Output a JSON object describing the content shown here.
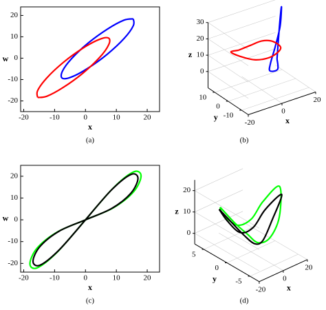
{
  "chart_data": [
    {
      "type": "line",
      "caption": "(a)",
      "x_label": "x",
      "y_label": "w",
      "xlim": [
        -21,
        24
      ],
      "ylim": [
        -25,
        24
      ],
      "xticks": [
        -20,
        -10,
        0,
        10,
        20
      ],
      "yticks": [
        -20,
        -10,
        0,
        10,
        20
      ],
      "series": [
        {
          "color": "#0000ff",
          "x": [
            15.5,
            12.5,
            7.1,
            0.9,
            -4.5,
            -7.5,
            -7.5,
            -4.5,
            0.9,
            7.1,
            12.5,
            15.5,
            15.5
          ],
          "values": [
            18.4,
            17.8,
            13.6,
            7.1,
            -0.2,
            -6.2,
            -9.4,
            -8.8,
            -4.6,
            1.9,
            9.2,
            15.2,
            18.4
          ]
        },
        {
          "color": "#ff0000",
          "x": [
            -15.5,
            -12.5,
            -7.1,
            -0.9,
            4.5,
            7.5,
            7.5,
            4.5,
            -0.9,
            -7.1,
            -12.5,
            -15.5,
            -15.5
          ],
          "values": [
            -18.4,
            -17.8,
            -13.6,
            -7.1,
            0.2,
            6.2,
            9.4,
            8.8,
            4.6,
            -1.9,
            -9.2,
            -15.2,
            -18.4
          ]
        }
      ]
    },
    {
      "type": "line3d",
      "caption": "(b)",
      "x_label": "x",
      "y_label": "y",
      "z_label": "z",
      "xlim": [
        -20,
        20
      ],
      "ylim": [
        -15,
        15
      ],
      "zlim": [
        -10,
        30
      ],
      "xticks": [
        -20,
        0,
        20
      ],
      "yticks": [
        -10,
        0,
        10
      ],
      "zticks": [
        0,
        10,
        20,
        30
      ],
      "series": [
        {
          "color": "#0000ff",
          "x": [
            5,
            10,
            15,
            18,
            14,
            8,
            2,
            0,
            3,
            5
          ],
          "y": [
            -5,
            0,
            5,
            8,
            4,
            0,
            -4,
            -6,
            -8,
            -5
          ],
          "z": [
            10,
            20,
            28,
            30,
            22,
            14,
            8,
            5,
            6,
            10
          ]
        },
        {
          "color": "#ff0000",
          "x": [
            -10,
            -5,
            0,
            5,
            8,
            4,
            -2,
            -8,
            -12,
            -10
          ],
          "y": [
            5,
            2,
            0,
            -2,
            -4,
            -2,
            2,
            6,
            8,
            5
          ],
          "z": [
            15,
            18,
            20,
            19,
            15,
            10,
            8,
            10,
            13,
            15
          ]
        }
      ]
    },
    {
      "type": "line",
      "caption": "(c)",
      "x_label": "x",
      "y_label": "w",
      "xlim": [
        -21,
        24
      ],
      "ylim": [
        -24,
        25
      ],
      "xticks": [
        -20,
        -10,
        0,
        10,
        20
      ],
      "yticks": [
        -20,
        -10,
        0,
        10,
        20
      ],
      "series": [
        {
          "color": "#00ff00",
          "x": [
            0,
            9,
            15.6,
            18,
            15.6,
            9,
            0,
            -9,
            -15.6,
            -18,
            -15.6,
            -9,
            0
          ],
          "values": [
            0,
            14.6,
            22,
            20.1,
            12.9,
            5.5,
            0,
            -5.5,
            -12.9,
            -20.1,
            -22,
            -14.6,
            0
          ]
        },
        {
          "color": "#000000",
          "x": [
            0,
            8.5,
            14.7,
            17,
            14.7,
            8.5,
            0,
            -8.5,
            -14.7,
            -17,
            -14.7,
            -8.5,
            0
          ],
          "values": [
            0,
            13.8,
            20.8,
            19,
            12.2,
            5.2,
            0,
            -5.2,
            -12.2,
            -19,
            -20.8,
            -13.8,
            0
          ]
        }
      ]
    },
    {
      "type": "line3d",
      "caption": "(d)",
      "x_label": "x",
      "y_label": "y",
      "z_label": "z",
      "xlim": [
        -20,
        20
      ],
      "ylim": [
        -7,
        7
      ],
      "zlim": [
        -5,
        25
      ],
      "xticks": [
        -20,
        0,
        20
      ],
      "yticks": [
        -5,
        0,
        5
      ],
      "zticks": [
        0,
        10,
        20
      ],
      "series": [
        {
          "color": "#00ff00",
          "x": [
            -18,
            -10,
            -3,
            2,
            8,
            12,
            16,
            10,
            4,
            -4,
            -12,
            -18
          ],
          "y": [
            2,
            1,
            0,
            -1,
            -2,
            -3,
            -2,
            0,
            1,
            2,
            3,
            2
          ],
          "z": [
            18,
            10,
            4,
            0,
            2,
            12,
            24,
            16,
            8,
            6,
            12,
            18
          ]
        },
        {
          "color": "#000000",
          "x": [
            -15,
            -8,
            -2,
            3,
            6,
            10,
            14,
            8,
            2,
            -5,
            -12,
            -15
          ],
          "y": [
            3,
            2,
            1,
            0,
            -1,
            -2,
            -3,
            -1,
            0,
            1,
            2,
            3
          ],
          "z": [
            15,
            8,
            2,
            -2,
            0,
            10,
            22,
            14,
            6,
            4,
            10,
            15
          ]
        }
      ]
    }
  ]
}
